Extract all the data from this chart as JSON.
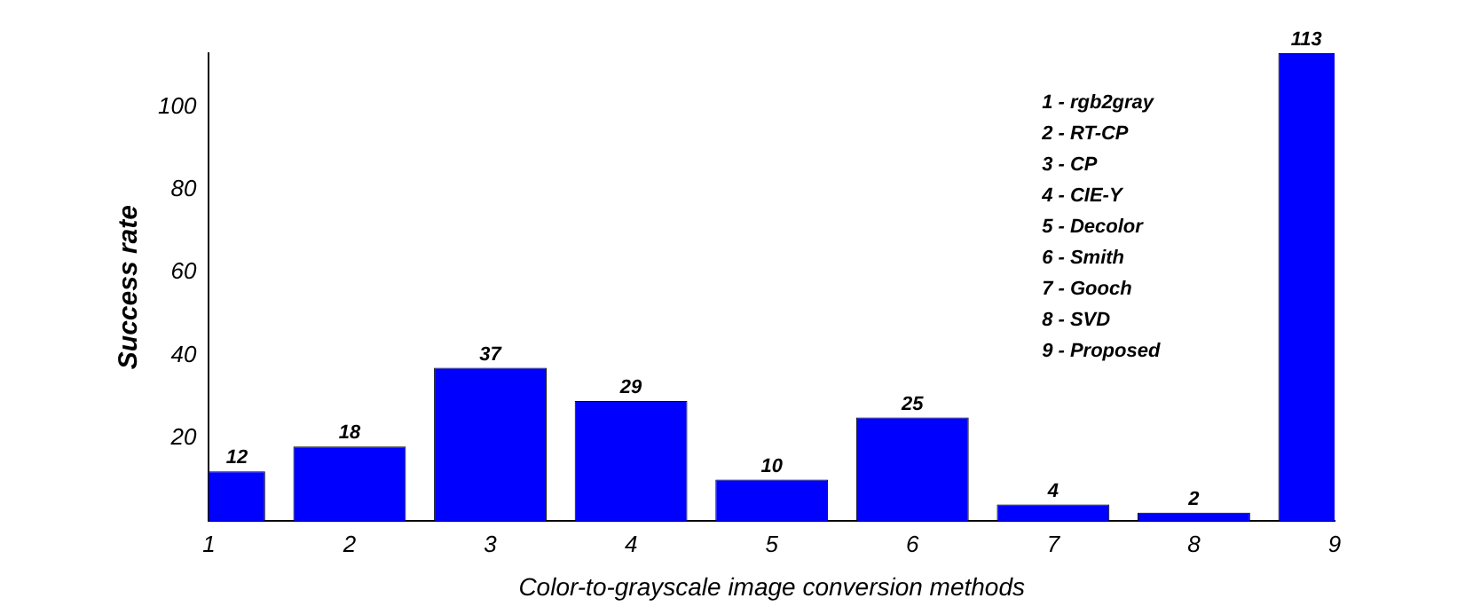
{
  "chart_data": {
    "type": "bar",
    "xlabel": "Color-to-grayscale image conversion methods",
    "ylabel": "Success rate",
    "categories": [
      "1",
      "2",
      "3",
      "4",
      "5",
      "6",
      "7",
      "8",
      "9"
    ],
    "values": [
      12,
      18,
      37,
      29,
      10,
      25,
      4,
      2,
      113
    ],
    "color": "#0000ff",
    "ylim": [
      0,
      113
    ],
    "yticks": [
      20,
      40,
      60,
      80,
      100
    ],
    "grid": false,
    "legend": false,
    "data_labels": true,
    "annotations": [
      "1 - rgb2gray",
      "2 - RT-CP",
      "3 - CP",
      "4 - CIE-Y",
      "5 - Decolor",
      "6 - Smith",
      "7 - Gooch",
      "8 - SVD",
      "9 - Proposed"
    ]
  }
}
